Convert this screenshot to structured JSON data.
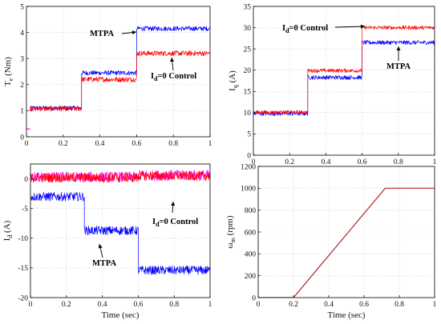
{
  "chart_data": [
    {
      "type": "line",
      "ylabel": "T_e (Nm)",
      "ylabel_main": "T",
      "ylabel_sub": "e",
      "ylabel_unit": " (Nm)",
      "xlabel": "",
      "xlim": [
        0,
        1
      ],
      "ylim": [
        0,
        5
      ],
      "xticks": [
        0,
        0.2,
        0.4,
        0.6,
        0.8,
        1
      ],
      "yticks": [
        0,
        1,
        2,
        3,
        4,
        5
      ],
      "xtick_labels": [
        "0",
        "0.2",
        "0.4",
        "0.6",
        "0.8",
        "1"
      ],
      "ytick_labels": [
        "0",
        "1",
        "2",
        "3",
        "4",
        "5"
      ],
      "grid": true,
      "series": [
        {
          "color": "#ff00ff",
          "noise": 0.0,
          "width": 1.2,
          "segments": [
            {
              "x0": 0,
              "x1": 0.02,
              "y": 0.3
            }
          ]
        },
        {
          "color": "#0000ff",
          "noise": 0.09,
          "segments": [
            {
              "x0": 0.02,
              "x1": 0.3,
              "y": 1.1
            },
            {
              "x0": 0.3,
              "x1": 0.6,
              "y": 2.45
            },
            {
              "x0": 0.6,
              "x1": 1.0,
              "y": 4.15
            }
          ]
        },
        {
          "color": "#ff0000",
          "noise": 0.1,
          "segments": [
            {
              "x0": 0.02,
              "x1": 0.3,
              "y": 1.08
            },
            {
              "x0": 0.3,
              "x1": 0.6,
              "y": 2.2
            },
            {
              "x0": 0.6,
              "x1": 1.0,
              "y": 3.2
            }
          ]
        }
      ],
      "annotations": [
        {
          "text": "MTPA",
          "sub": "",
          "rest": ""
        },
        {
          "text": "I",
          "sub": "d",
          "rest": "=0 Control"
        }
      ]
    },
    {
      "type": "line",
      "ylabel": "I_q (A)",
      "ylabel_main": "I",
      "ylabel_sub": "q",
      "ylabel_unit": " (A)",
      "xlabel": "",
      "xlim": [
        0,
        1
      ],
      "ylim": [
        0,
        35
      ],
      "xticks": [
        0,
        0.2,
        0.4,
        0.6,
        0.8,
        1
      ],
      "yticks": [
        0,
        5,
        10,
        15,
        20,
        25,
        30,
        35
      ],
      "xtick_labels": [
        "0",
        "0.2",
        "0.4",
        "0.6",
        "0.8",
        "1"
      ],
      "ytick_labels": [
        "0",
        "5",
        "10",
        "15",
        "20",
        "25",
        "30",
        "35"
      ],
      "grid": true,
      "series": [
        {
          "color": "#0000ff",
          "noise": 0.5,
          "segments": [
            {
              "x0": 0,
              "x1": 0.3,
              "y": 9.8
            },
            {
              "x0": 0.3,
              "x1": 0.6,
              "y": 18.3
            },
            {
              "x0": 0.6,
              "x1": 1.0,
              "y": 26.5
            }
          ]
        },
        {
          "color": "#ff0000",
          "noise": 0.45,
          "segments": [
            {
              "x0": 0,
              "x1": 0.3,
              "y": 10.1
            },
            {
              "x0": 0.3,
              "x1": 0.6,
              "y": 19.9
            },
            {
              "x0": 0.6,
              "x1": 1.0,
              "y": 30.0
            }
          ]
        }
      ],
      "annotations": [
        {
          "text": "I",
          "sub": "d",
          "rest": "=0 Control"
        },
        {
          "text": "MTPA",
          "sub": "",
          "rest": ""
        }
      ]
    },
    {
      "type": "line",
      "ylabel": "I_d (A)",
      "ylabel_main": "I",
      "ylabel_sub": "d",
      "ylabel_unit": " (A)",
      "xlabel": "Time (sec)",
      "xlim": [
        0,
        1
      ],
      "ylim": [
        -20,
        0
      ],
      "ymax_plot": 2.5,
      "xticks": [
        0,
        0.2,
        0.4,
        0.6,
        0.8,
        1
      ],
      "yticks": [
        -20,
        -15,
        -10,
        -5,
        0
      ],
      "xtick_labels": [
        "0",
        "0.2",
        "0.4",
        "0.6",
        "0.8",
        "1"
      ],
      "ytick_labels": [
        "-20",
        "-15",
        "-10",
        "-5",
        "0"
      ],
      "grid": true,
      "series": [
        {
          "color": "#0000ff",
          "noise": 0.75,
          "segments": [
            {
              "x0": 0,
              "x1": 0.3,
              "y": -3.0
            },
            {
              "x0": 0.3,
              "x1": 0.6,
              "y": -8.7
            },
            {
              "x0": 0.6,
              "x1": 1.0,
              "y": -15.4
            }
          ]
        },
        {
          "color": "#ff00ff",
          "noise": 0.9,
          "segments": [
            {
              "x0": 0,
              "x1": 0.6,
              "y": 0.3
            },
            {
              "x0": 0.6,
              "x1": 1.0,
              "y": 0.6
            }
          ]
        },
        {
          "color": "#ff0000",
          "noise": 0.8,
          "segments": [
            {
              "x0": 0,
              "x1": 0.6,
              "y": 0.2
            },
            {
              "x0": 0.6,
              "x1": 1.0,
              "y": 0.5
            }
          ]
        }
      ],
      "annotations": [
        {
          "text": "I",
          "sub": "d",
          "rest": "=0 Control"
        },
        {
          "text": "MTPA",
          "sub": "",
          "rest": ""
        }
      ]
    },
    {
      "type": "line",
      "ylabel": "ω_m (rpm)",
      "ylabel_main": "ω",
      "ylabel_sub": "m",
      "ylabel_unit": " (rpm)",
      "xlabel": "Time (sec)",
      "xlim": [
        0,
        1
      ],
      "ylim": [
        0,
        1200
      ],
      "xticks": [
        0,
        0.2,
        0.4,
        0.6,
        0.8,
        1
      ],
      "yticks": [
        0,
        200,
        400,
        600,
        800,
        1000,
        1200
      ],
      "xtick_labels": [
        "0",
        "0.2",
        "0.4",
        "0.6",
        "0.8",
        "1"
      ],
      "ytick_labels": [
        "0",
        "200",
        "400",
        "600",
        "800",
        "1000",
        "1200"
      ],
      "grid": true,
      "series": [
        {
          "color": "#b22222",
          "noise": 0,
          "width": 1.2,
          "points": [
            [
              0,
              0
            ],
            [
              0.2,
              0
            ],
            [
              0.72,
              1000
            ],
            [
              1.0,
              1000
            ]
          ]
        }
      ],
      "annotations": []
    }
  ]
}
